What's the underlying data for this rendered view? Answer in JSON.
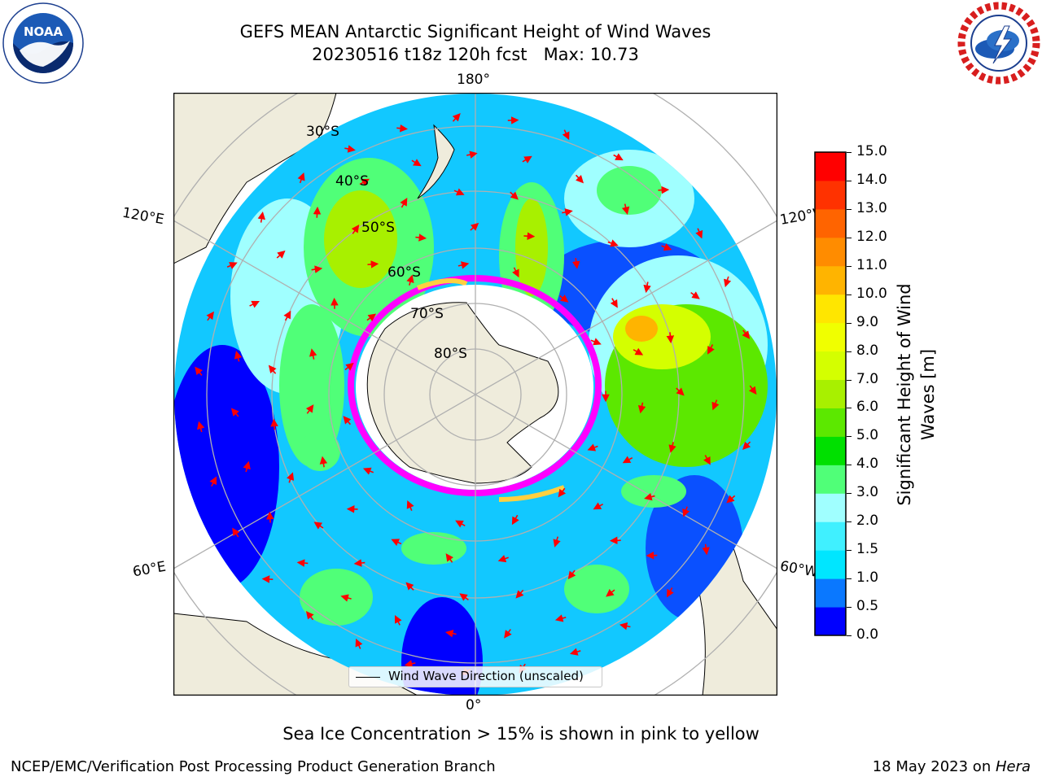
{
  "title": {
    "line1": "GEFS MEAN Antarctic Significant Height of Wind Waves",
    "line2": "20230516 t18z 120h fcst   Max: 10.73"
  },
  "map": {
    "projection": "south-polar-stereographic",
    "longitude_labels": {
      "top": "180°",
      "upper_left": "120°E",
      "upper_right": "120°W",
      "lower_left": "60°E",
      "lower_right": "60°W",
      "bottom": "0°"
    },
    "latitude_labels": [
      "30°S",
      "40°S",
      "50°S",
      "60°S",
      "70°S",
      "80°S"
    ],
    "colors": {
      "land": "#efecdc",
      "coastline": "#000000",
      "grid": "#b0b0b0",
      "arrow": "#ff0000",
      "sea_ice_low": "#ff00ff",
      "sea_ice_high": "#ffd040"
    }
  },
  "legend": {
    "label": "Wind Wave Direction (unscaled)"
  },
  "colorbar": {
    "title": "Significant Height of Wind Waves [m]",
    "ticks": [
      "0.0",
      "0.5",
      "1.0",
      "1.5",
      "2.0",
      "3.0",
      "4.0",
      "5.0",
      "6.0",
      "7.0",
      "8.0",
      "9.0",
      "10.0",
      "11.0",
      "12.0",
      "13.0",
      "14.0",
      "15.0"
    ],
    "colors": [
      "#0000ff",
      "#0a78ff",
      "#00e6ff",
      "#40f0ff",
      "#a0ffff",
      "#50ff78",
      "#00e000",
      "#5ce800",
      "#a8f000",
      "#d4ff00",
      "#f0ff00",
      "#ffe600",
      "#ffb400",
      "#ff8c00",
      "#ff6400",
      "#ff3200",
      "#ff0000"
    ]
  },
  "notes": {
    "sea_ice": "Sea Ice Concentration > 15% is shown in pink to yellow"
  },
  "footer": {
    "left": "NCEP/EMC/Verification Post Processing Product Generation Branch",
    "right_prefix": "18 May 2023 on ",
    "right_host": "Hera"
  },
  "logos": {
    "noaa": "NOAA",
    "nws": "NATIONAL WEATHER SERVICE"
  }
}
